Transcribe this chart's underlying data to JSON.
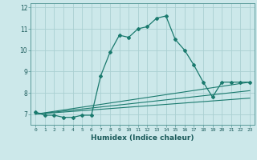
{
  "xlabel": "Humidex (Indice chaleur)",
  "ylabel": "",
  "background_color": "#cce8ea",
  "grid_color": "#aacfd2",
  "line_color": "#1a7a6e",
  "xlim": [
    -0.5,
    23.5
  ],
  "ylim": [
    6.5,
    12.2
  ],
  "yticks": [
    7,
    8,
    9,
    10,
    11,
    12
  ],
  "xticks": [
    0,
    1,
    2,
    3,
    4,
    5,
    6,
    7,
    8,
    9,
    10,
    11,
    12,
    13,
    14,
    15,
    16,
    17,
    18,
    19,
    20,
    21,
    22,
    23
  ],
  "series1_x": [
    0,
    1,
    2,
    3,
    4,
    5,
    6,
    7,
    8,
    9,
    10,
    11,
    12,
    13,
    14,
    15,
    16,
    17,
    18,
    19,
    20,
    21,
    22,
    23
  ],
  "series1_y": [
    7.1,
    6.95,
    6.95,
    6.85,
    6.85,
    6.95,
    6.95,
    8.8,
    9.9,
    10.7,
    10.6,
    11.0,
    11.1,
    11.5,
    11.6,
    10.5,
    10.0,
    9.3,
    8.5,
    7.8,
    8.5,
    8.5,
    8.5,
    8.5
  ],
  "series2_x": [
    0,
    23
  ],
  "series2_y": [
    7.0,
    8.5
  ],
  "series3_x": [
    0,
    23
  ],
  "series3_y": [
    7.0,
    8.1
  ],
  "series4_x": [
    0,
    23
  ],
  "series4_y": [
    7.0,
    7.75
  ]
}
